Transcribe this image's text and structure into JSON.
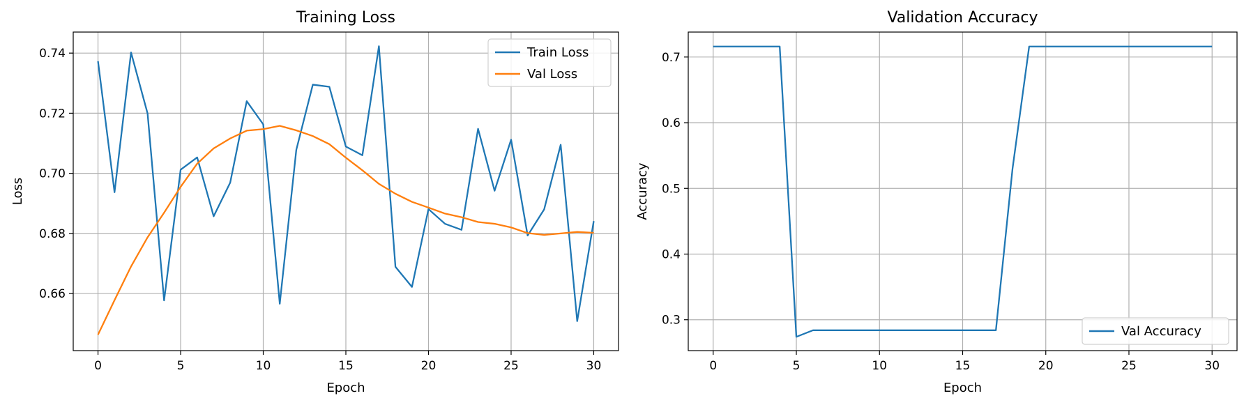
{
  "chart_data": [
    {
      "type": "line",
      "title": "Training Loss",
      "xlabel": "Epoch",
      "ylabel": "Loss",
      "xlim": [
        -1.5,
        31.5
      ],
      "ylim": [
        0.641,
        0.747
      ],
      "xticks": [
        0,
        5,
        10,
        15,
        20,
        25,
        30
      ],
      "yticks": [
        0.66,
        0.68,
        0.7,
        0.72,
        0.74
      ],
      "xtick_labels": [
        "0",
        "5",
        "10",
        "15",
        "20",
        "25",
        "30"
      ],
      "ytick_labels": [
        "0.66",
        "0.68",
        "0.70",
        "0.72",
        "0.74"
      ],
      "grid": true,
      "legend": "top-right",
      "x": [
        0,
        1,
        2,
        3,
        4,
        5,
        6,
        7,
        8,
        9,
        10,
        11,
        12,
        13,
        14,
        15,
        16,
        17,
        18,
        19,
        20,
        21,
        22,
        23,
        24,
        25,
        26,
        27,
        28,
        29,
        30
      ],
      "series": [
        {
          "name": "Train Loss",
          "color": "#1f77b4",
          "values": [
            0.7373,
            0.6937,
            0.7402,
            0.7199,
            0.6577,
            0.7012,
            0.7053,
            0.6857,
            0.6969,
            0.724,
            0.7163,
            0.6566,
            0.7078,
            0.7295,
            0.7288,
            0.7089,
            0.706,
            0.7423,
            0.6689,
            0.6622,
            0.6881,
            0.6832,
            0.6812,
            0.7148,
            0.6942,
            0.7112,
            0.6793,
            0.688,
            0.7095,
            0.6508,
            0.6841
          ]
        },
        {
          "name": "Val Loss",
          "color": "#ff7f0e",
          "values": [
            0.6463,
            0.6578,
            0.669,
            0.6787,
            0.6869,
            0.6955,
            0.7032,
            0.7083,
            0.7116,
            0.7142,
            0.7147,
            0.7158,
            0.7143,
            0.7124,
            0.7097,
            0.7052,
            0.701,
            0.6965,
            0.6932,
            0.6905,
            0.6886,
            0.6866,
            0.6854,
            0.6838,
            0.6832,
            0.682,
            0.6801,
            0.6795,
            0.68,
            0.6805,
            0.6802
          ]
        }
      ]
    },
    {
      "type": "line",
      "title": "Validation Accuracy",
      "xlabel": "Epoch",
      "ylabel": "Accuracy",
      "xlim": [
        -1.5,
        31.5
      ],
      "ylim": [
        0.253,
        0.738
      ],
      "xticks": [
        0,
        5,
        10,
        15,
        20,
        25,
        30
      ],
      "yticks": [
        0.3,
        0.4,
        0.5,
        0.6,
        0.7
      ],
      "xtick_labels": [
        "0",
        "5",
        "10",
        "15",
        "20",
        "25",
        "30"
      ],
      "ytick_labels": [
        "0.3",
        "0.4",
        "0.5",
        "0.6",
        "0.7"
      ],
      "grid": true,
      "legend": "bottom-right",
      "x": [
        0,
        1,
        2,
        3,
        4,
        5,
        6,
        7,
        8,
        9,
        10,
        11,
        12,
        13,
        14,
        15,
        16,
        17,
        18,
        19,
        20,
        21,
        22,
        23,
        24,
        25,
        26,
        27,
        28,
        29,
        30
      ],
      "series": [
        {
          "name": "Val Accuracy",
          "color": "#1f77b4",
          "values": [
            0.716,
            0.716,
            0.716,
            0.716,
            0.716,
            0.274,
            0.284,
            0.284,
            0.284,
            0.284,
            0.284,
            0.284,
            0.284,
            0.284,
            0.284,
            0.284,
            0.284,
            0.284,
            0.53,
            0.716,
            0.716,
            0.716,
            0.716,
            0.716,
            0.716,
            0.716,
            0.716,
            0.716,
            0.716,
            0.716,
            0.716
          ]
        }
      ]
    }
  ]
}
